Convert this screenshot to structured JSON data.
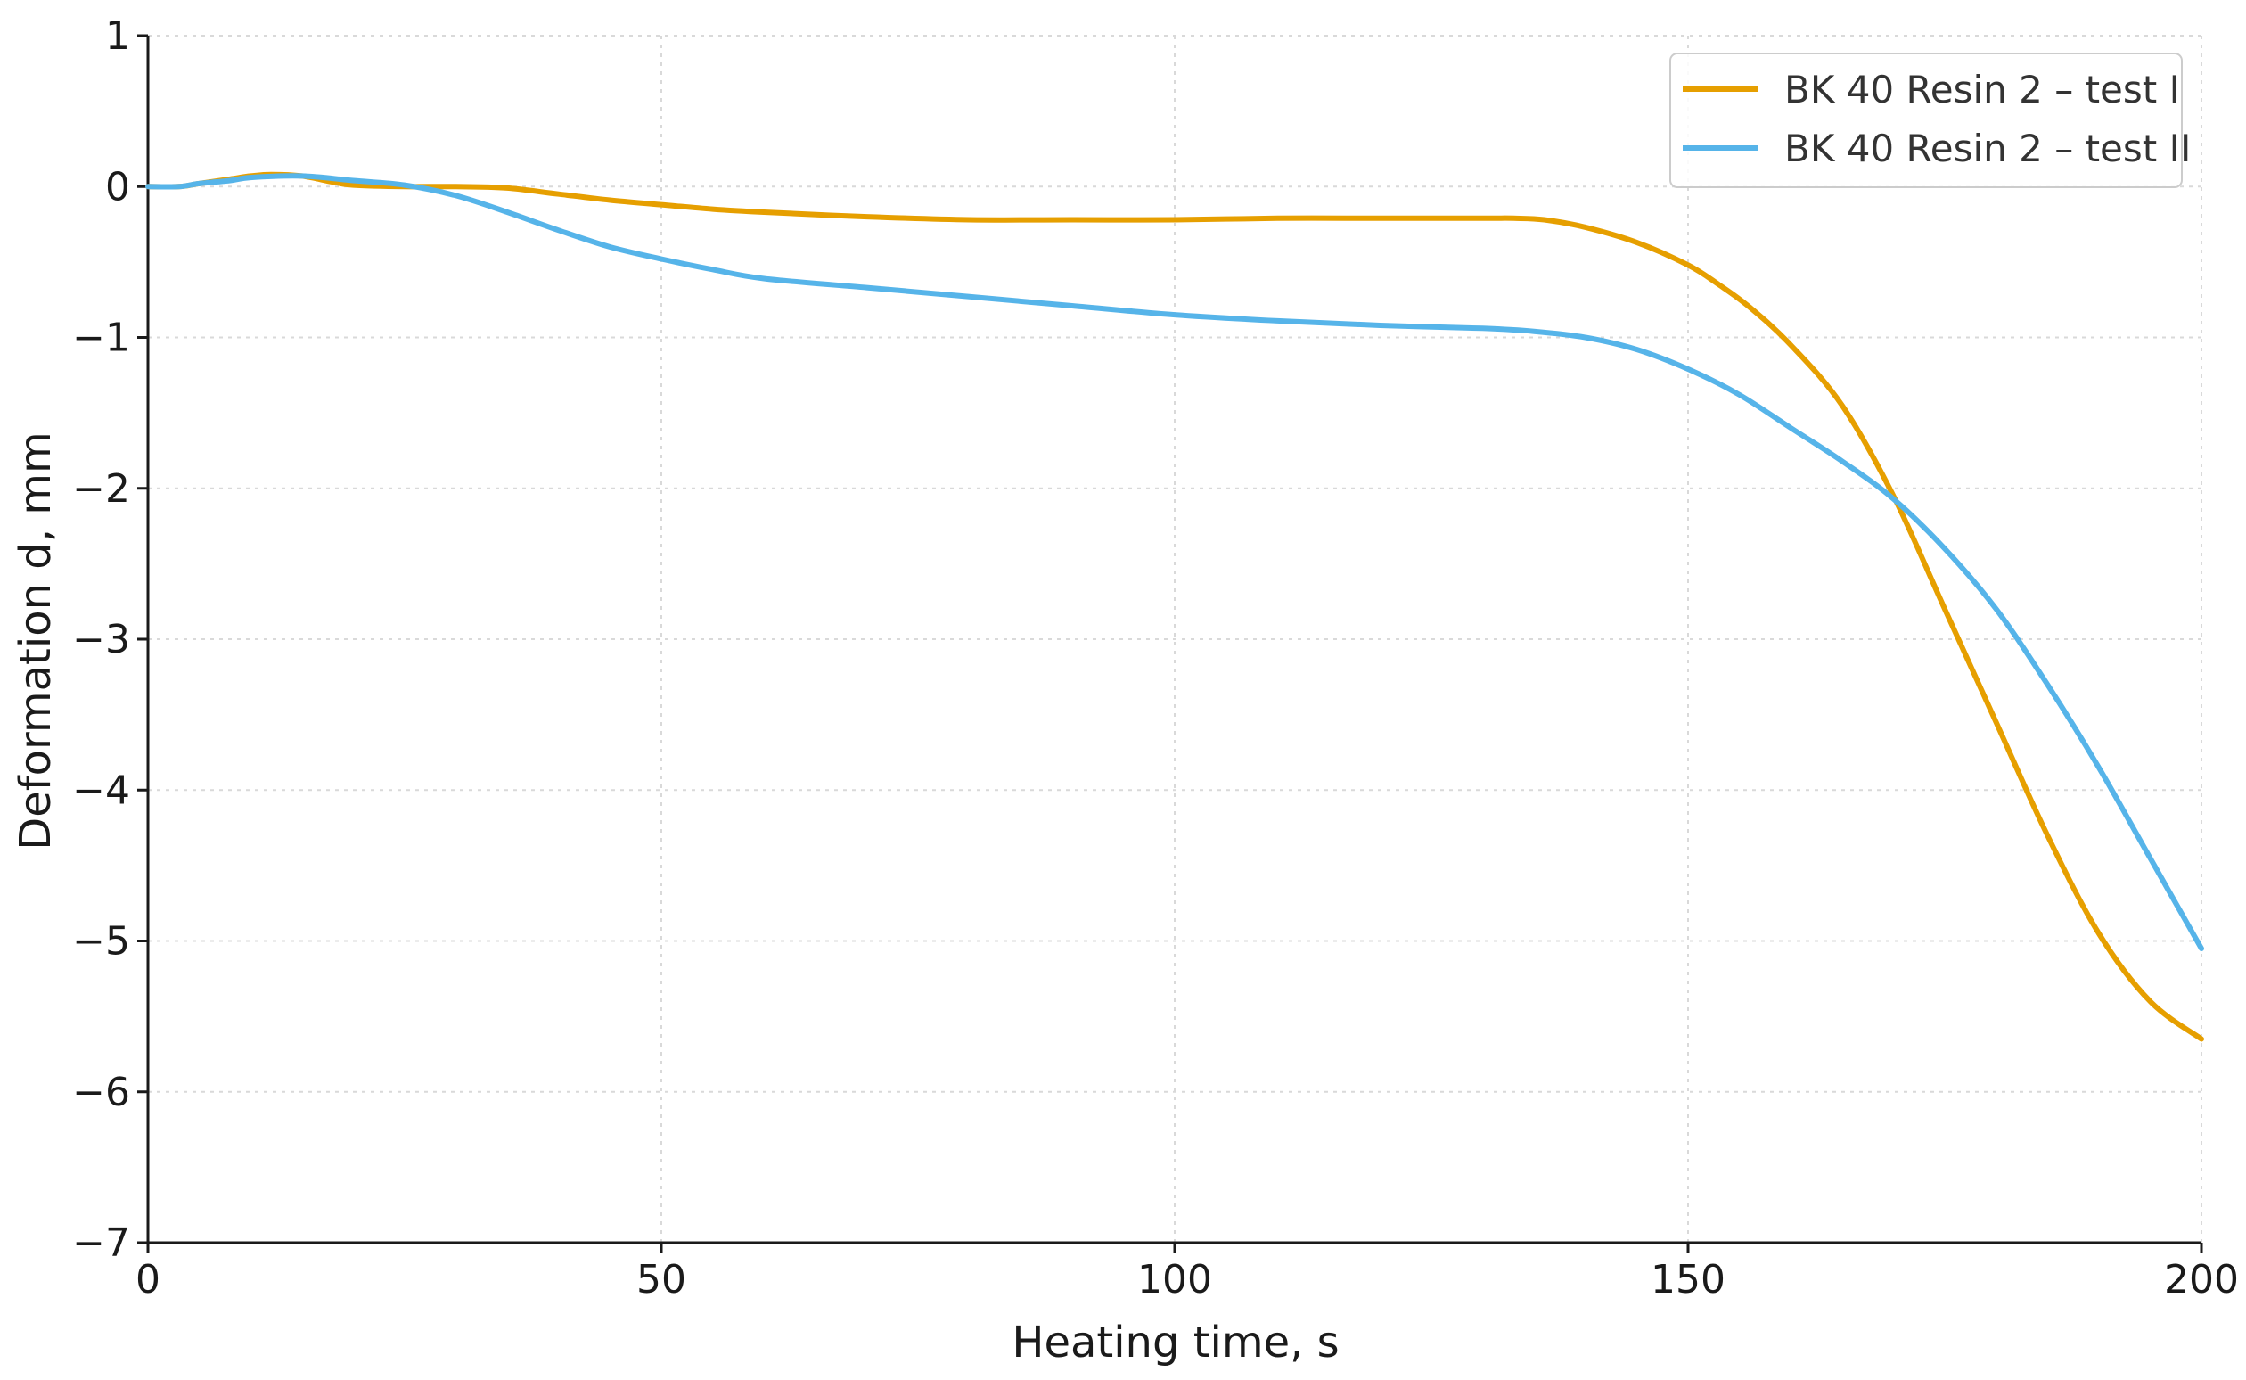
{
  "chart_data": {
    "type": "line",
    "xlabel": "Heating time, s",
    "ylabel": "Deformation d, mm",
    "xlim": [
      0,
      200
    ],
    "ylim": [
      -7,
      1
    ],
    "xticks": [
      "0",
      "50",
      "100",
      "150",
      "200"
    ],
    "yticks": [
      "1",
      "0",
      "−1",
      "−2",
      "−3",
      "−4",
      "−5",
      "−6",
      "−7"
    ],
    "grid": true,
    "legend_position": "top-right",
    "series": [
      {
        "name": "BK 40 Resin 2 – test I",
        "color": "#E69F00",
        "x": [
          0,
          3,
          5,
          8,
          10,
          12,
          15,
          18,
          20,
          25,
          30,
          35,
          40,
          45,
          50,
          55,
          60,
          70,
          80,
          90,
          100,
          110,
          120,
          130,
          133,
          136,
          140,
          145,
          150,
          153,
          156,
          160,
          165,
          170,
          175,
          180,
          185,
          190,
          195,
          200
        ],
        "y": [
          0,
          0,
          0.02,
          0.05,
          0.07,
          0.08,
          0.07,
          0.03,
          0.01,
          0,
          0,
          -0.01,
          -0.05,
          -0.09,
          -0.12,
          -0.15,
          -0.17,
          -0.2,
          -0.22,
          -0.22,
          -0.22,
          -0.21,
          -0.21,
          -0.21,
          -0.21,
          -0.22,
          -0.27,
          -0.37,
          -0.52,
          -0.65,
          -0.8,
          -1.05,
          -1.45,
          -2.05,
          -2.8,
          -3.55,
          -4.3,
          -4.95,
          -5.4,
          -5.65
        ]
      },
      {
        "name": "BK 40 Resin 2 – test II",
        "color": "#56B4E9",
        "x": [
          0,
          3,
          5,
          8,
          10,
          15,
          20,
          25,
          30,
          35,
          40,
          45,
          50,
          55,
          60,
          70,
          80,
          90,
          100,
          110,
          120,
          130,
          135,
          140,
          145,
          150,
          155,
          160,
          165,
          170,
          175,
          180,
          185,
          190,
          195,
          200
        ],
        "y": [
          0,
          0,
          0.02,
          0.04,
          0.06,
          0.07,
          0.04,
          0.01,
          -0.06,
          -0.17,
          -0.29,
          -0.4,
          -0.48,
          -0.55,
          -0.61,
          -0.67,
          -0.73,
          -0.79,
          -0.85,
          -0.89,
          -0.92,
          -0.94,
          -0.96,
          -1.0,
          -1.08,
          -1.21,
          -1.38,
          -1.6,
          -1.82,
          -2.07,
          -2.4,
          -2.8,
          -3.3,
          -3.85,
          -4.45,
          -5.05
        ]
      }
    ]
  }
}
